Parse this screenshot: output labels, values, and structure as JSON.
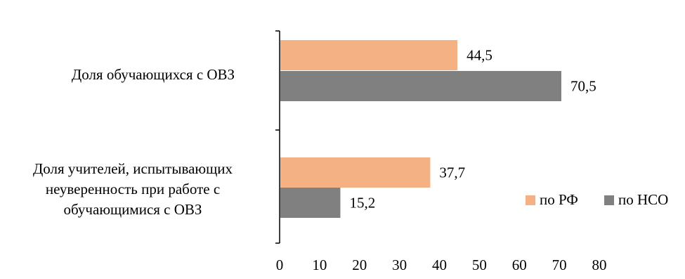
{
  "chart_data": {
    "type": "bar",
    "orientation": "horizontal",
    "categories": [
      [
        "Доля обучающихся с ОВЗ"
      ],
      [
        "Доля учителей, испытывающих",
        "неуверенность при работе с",
        "обучающимися с ОВЗ"
      ]
    ],
    "series": [
      {
        "name": "по РФ",
        "values": [
          44.5,
          37.7
        ],
        "color": "#f4b183"
      },
      {
        "name": "по НСО",
        "values": [
          70.5,
          15.2
        ],
        "color": "#808080"
      }
    ],
    "data_labels": [
      [
        "44,5",
        "37,7"
      ],
      [
        "70,5",
        "15,2"
      ]
    ],
    "xlim": [
      0,
      80
    ],
    "xticks": [
      "0",
      "10",
      "20",
      "30",
      "40",
      "50",
      "60",
      "70",
      "80"
    ],
    "grid": false,
    "legend_position": "right"
  }
}
